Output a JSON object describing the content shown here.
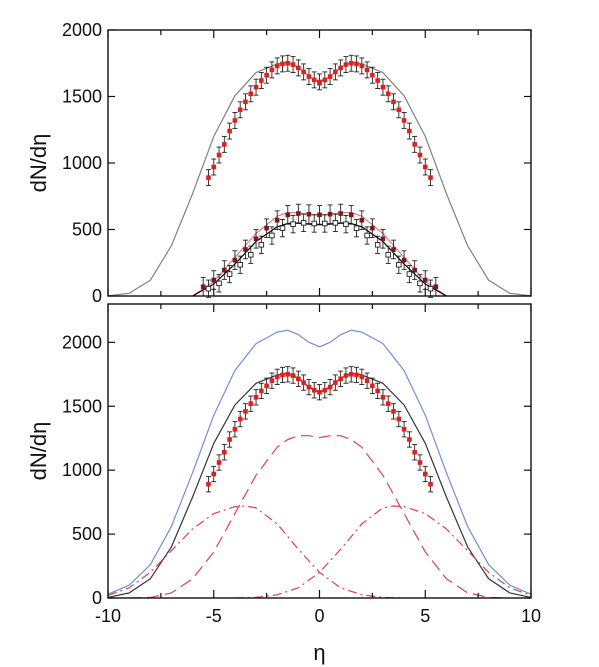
{
  "chart_data": [
    {
      "type": "line",
      "panel": "top",
      "xlabel": "",
      "ylabel": "dN/dη",
      "xlim": [
        -10,
        10
      ],
      "ylim": [
        0,
        2000
      ],
      "xticks": [],
      "yticks": [
        0,
        500,
        1000,
        1500,
        2000
      ],
      "grid": false,
      "series": [
        {
          "style": "solid line",
          "color": "#808080",
          "x": [
            -10,
            -9,
            -8,
            -7,
            -6,
            -5,
            -4,
            -3,
            -2,
            -1.5,
            -1,
            -0.5,
            0,
            0.5,
            1,
            1.5,
            2,
            3,
            4,
            5,
            6,
            7,
            8,
            9,
            10
          ],
          "y": [
            1,
            20,
            118,
            378,
            770,
            1200,
            1505,
            1680,
            1745,
            1755,
            1720,
            1650,
            1610,
            1650,
            1720,
            1755,
            1745,
            1680,
            1505,
            1200,
            770,
            378,
            118,
            20,
            1
          ]
        },
        {
          "style": "points with error bars",
          "color": "#e0201b",
          "error": 60,
          "x": [
            -5.25,
            -5,
            -4.75,
            -4.5,
            -4.25,
            -4,
            -3.75,
            -3.5,
            -3.25,
            -3,
            -2.75,
            -2.5,
            -2.25,
            -2,
            -1.75,
            -1.5,
            -1.25,
            -1,
            -0.75,
            -0.5,
            -0.25,
            0,
            0.25,
            0.5,
            0.75,
            1,
            1.25,
            1.5,
            1.75,
            2,
            2.25,
            2.5,
            2.75,
            3,
            3.25,
            3.5,
            3.75,
            4,
            4.25,
            4.5,
            4.75,
            5,
            5.25
          ],
          "y": [
            890,
            970,
            1060,
            1140,
            1240,
            1320,
            1400,
            1460,
            1520,
            1570,
            1620,
            1660,
            1700,
            1730,
            1745,
            1750,
            1740,
            1715,
            1685,
            1650,
            1625,
            1610,
            1625,
            1650,
            1685,
            1715,
            1740,
            1750,
            1745,
            1730,
            1700,
            1660,
            1620,
            1570,
            1520,
            1460,
            1400,
            1320,
            1240,
            1140,
            1060,
            970,
            890
          ]
        },
        {
          "style": "points with error bars",
          "color": "#e0201b",
          "error": 0,
          "x": [
            0
          ],
          "y": [
            1600
          ]
        },
        {
          "style": "solid line",
          "color": "#e07a86",
          "x": [
            -6,
            -5,
            -4,
            -3,
            -2,
            -1.5,
            -1,
            -0.5,
            0,
            0.5,
            1,
            1.5,
            2,
            3,
            4,
            5,
            6
          ],
          "y": [
            0,
            110,
            290,
            470,
            600,
            628,
            625,
            615,
            610,
            615,
            625,
            628,
            600,
            470,
            290,
            110,
            0
          ]
        },
        {
          "style": "solid line",
          "color": "#000000",
          "x": [
            -6,
            -5,
            -4,
            -3,
            -2,
            -1.5,
            -1,
            -0.5,
            0,
            0.5,
            1,
            1.5,
            2,
            3,
            4,
            5,
            6
          ],
          "y": [
            0,
            90,
            240,
            410,
            520,
            545,
            548,
            540,
            535,
            540,
            548,
            545,
            520,
            410,
            240,
            90,
            0
          ]
        },
        {
          "style": "points with error bars",
          "color": "#7a1a20",
          "error": 70,
          "x": [
            -5.5,
            -5,
            -4.5,
            -4,
            -3.5,
            -3,
            -2.5,
            -2,
            -1.5,
            -1,
            -0.5,
            0,
            0.5,
            1,
            1.5,
            2,
            2.5,
            3,
            3.5,
            4,
            4.5,
            5,
            5.5
          ],
          "y": [
            70,
            120,
            195,
            270,
            350,
            430,
            510,
            570,
            610,
            620,
            615,
            610,
            615,
            620,
            610,
            570,
            510,
            430,
            350,
            270,
            195,
            120,
            70
          ]
        },
        {
          "style": "open squares with error bars",
          "color": "#222222",
          "error": 65,
          "x": [
            -5.25,
            -4.75,
            -4.25,
            -3.75,
            -3.25,
            -2.75,
            -2.25,
            -1.75,
            -1.25,
            -0.75,
            -0.25,
            0.25,
            0.75,
            1.25,
            1.75,
            2.25,
            2.75,
            3.25,
            3.75,
            4.25,
            4.75,
            5.25
          ],
          "y": [
            55,
            95,
            165,
            235,
            310,
            385,
            455,
            510,
            540,
            550,
            545,
            545,
            550,
            540,
            510,
            455,
            385,
            310,
            235,
            165,
            95,
            55
          ]
        }
      ]
    },
    {
      "type": "line",
      "panel": "bottom",
      "xlabel": "η",
      "ylabel": "dN/dη",
      "xlim": [
        -10,
        10
      ],
      "ylim": [
        0,
        2300
      ],
      "xticks": [
        -10,
        -5,
        0,
        5,
        10
      ],
      "yticks": [
        0,
        500,
        1000,
        1500,
        2000
      ],
      "grid": false,
      "series": [
        {
          "style": "solid line",
          "color": "#6f8fd6",
          "x": [
            -10,
            -9,
            -8,
            -7,
            -6,
            -5,
            -4,
            -3,
            -2,
            -1.5,
            -1,
            -0.5,
            0,
            0.5,
            1,
            1.5,
            2,
            3,
            4,
            5,
            6,
            7,
            8,
            9,
            10
          ],
          "y": [
            30,
            100,
            260,
            560,
            980,
            1430,
            1780,
            1990,
            2080,
            2095,
            2060,
            2000,
            1965,
            2000,
            2060,
            2095,
            2080,
            1990,
            1780,
            1430,
            980,
            560,
            260,
            100,
            30
          ]
        },
        {
          "style": "solid line",
          "color": "#333333",
          "x": [
            -10,
            -9,
            -8,
            -7,
            -6,
            -5,
            -4,
            -3,
            -2,
            -1.5,
            -1,
            -0.5,
            0,
            0.5,
            1,
            1.5,
            2,
            3,
            4,
            5,
            6,
            7,
            8,
            9,
            10
          ],
          "y": [
            5,
            40,
            150,
            400,
            790,
            1210,
            1510,
            1680,
            1745,
            1755,
            1720,
            1650,
            1610,
            1650,
            1720,
            1755,
            1745,
            1680,
            1510,
            1210,
            790,
            400,
            150,
            40,
            5
          ]
        },
        {
          "style": "points with error bars",
          "color": "#e0201b",
          "error": 60,
          "x": [
            -5.25,
            -5,
            -4.75,
            -4.5,
            -4.25,
            -4,
            -3.75,
            -3.5,
            -3.25,
            -3,
            -2.75,
            -2.5,
            -2.25,
            -2,
            -1.75,
            -1.5,
            -1.25,
            -1,
            -0.75,
            -0.5,
            -0.25,
            0,
            0.25,
            0.5,
            0.75,
            1,
            1.25,
            1.5,
            1.75,
            2,
            2.25,
            2.5,
            2.75,
            3,
            3.25,
            3.5,
            3.75,
            4,
            4.25,
            4.5,
            4.75,
            5,
            5.25
          ],
          "y": [
            890,
            970,
            1060,
            1140,
            1240,
            1320,
            1400,
            1460,
            1520,
            1570,
            1620,
            1660,
            1700,
            1730,
            1745,
            1750,
            1740,
            1715,
            1685,
            1650,
            1625,
            1610,
            1625,
            1650,
            1685,
            1715,
            1740,
            1750,
            1745,
            1730,
            1700,
            1660,
            1620,
            1570,
            1520,
            1460,
            1400,
            1320,
            1240,
            1140,
            1060,
            970,
            890
          ]
        },
        {
          "style": "dashed line",
          "color": "#d9415a",
          "x": [
            -9,
            -8,
            -7,
            -6,
            -5,
            -4,
            -3,
            -2,
            -1.5,
            -1,
            -0.5,
            0,
            0.5,
            1,
            1.5,
            2,
            3,
            4,
            5,
            6,
            7,
            8,
            9
          ],
          "y": [
            0,
            5,
            40,
            150,
            360,
            660,
            960,
            1180,
            1240,
            1270,
            1270,
            1255,
            1270,
            1270,
            1240,
            1180,
            960,
            660,
            360,
            150,
            40,
            5,
            0
          ]
        },
        {
          "style": "dash-dot line",
          "color": "#d9415a",
          "x": [
            -10,
            -9,
            -8,
            -7,
            -6,
            -5,
            -4,
            -3.5,
            -3,
            -2,
            -1,
            0,
            1,
            2,
            3,
            4
          ],
          "y": [
            20,
            80,
            200,
            370,
            540,
            660,
            715,
            720,
            705,
            580,
            380,
            200,
            80,
            25,
            5,
            0
          ]
        },
        {
          "style": "dash-dot line",
          "color": "#d9415a",
          "x": [
            -4,
            -3,
            -2,
            -1,
            0,
            1,
            2,
            3,
            3.5,
            4,
            5,
            6,
            7,
            8,
            9,
            10
          ],
          "y": [
            0,
            5,
            25,
            80,
            200,
            380,
            580,
            705,
            720,
            715,
            660,
            540,
            370,
            200,
            80,
            20
          ]
        }
      ]
    }
  ]
}
